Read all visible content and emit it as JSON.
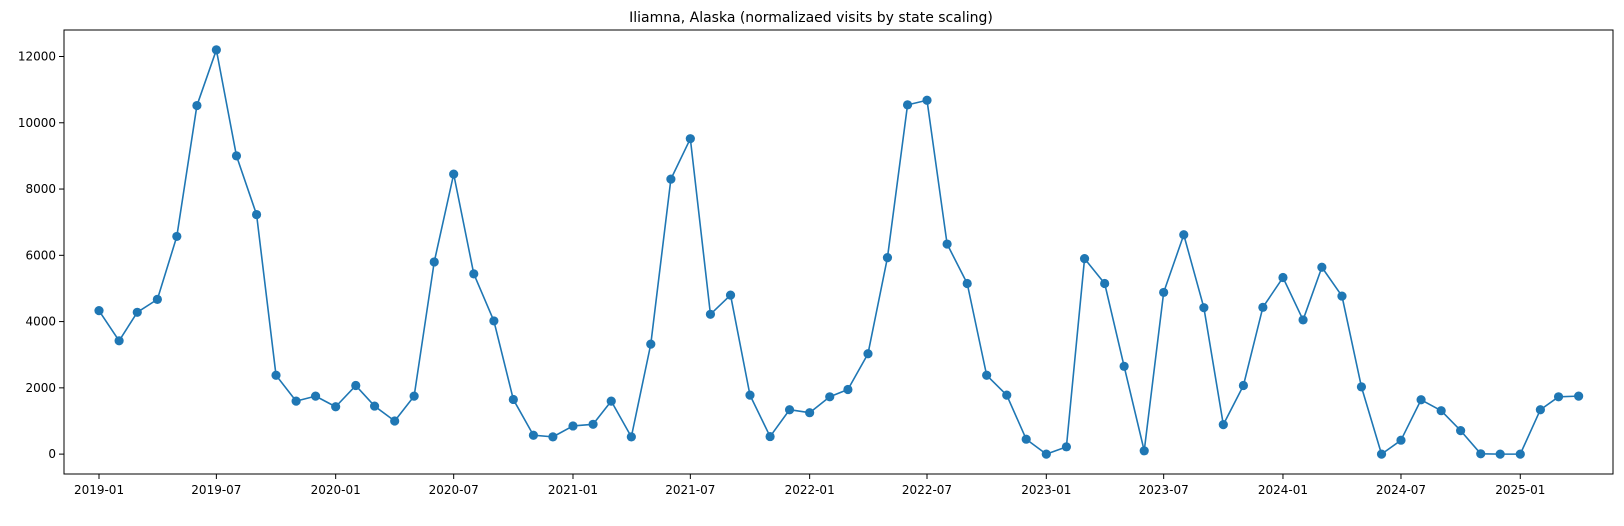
{
  "chart_data": {
    "type": "line",
    "title": "Iliamna, Alaska (normalizaed visits by state scaling)",
    "xlabel": "",
    "ylabel": "",
    "ylim": [
      -600,
      12800
    ],
    "xlim": [
      "2018-11-08",
      "2025-05-24"
    ],
    "grid": false,
    "color": "#1f77b4",
    "marker": "circle",
    "yticks": [
      0,
      2000,
      4000,
      6000,
      8000,
      10000,
      12000
    ],
    "xticks": [
      "2019-01",
      "2019-07",
      "2020-01",
      "2020-07",
      "2021-01",
      "2021-07",
      "2022-01",
      "2022-07",
      "2023-01",
      "2023-07",
      "2024-01",
      "2024-07",
      "2025-01"
    ],
    "series": [
      {
        "x": [
          "2019-01",
          "2019-02",
          "2019-03",
          "2019-04",
          "2019-05",
          "2019-06",
          "2019-07",
          "2019-08",
          "2019-09",
          "2019-10",
          "2019-11",
          "2019-12",
          "2020-01",
          "2020-02",
          "2020-03",
          "2020-04",
          "2020-05",
          "2020-06",
          "2020-07",
          "2020-08",
          "2020-09",
          "2020-10",
          "2020-11",
          "2020-12",
          "2021-01",
          "2021-02",
          "2021-03",
          "2021-04",
          "2021-05",
          "2021-06",
          "2021-07",
          "2021-08",
          "2021-09",
          "2021-10",
          "2021-11",
          "2021-12",
          "2022-01",
          "2022-02",
          "2022-03",
          "2022-04",
          "2022-05",
          "2022-06",
          "2022-07",
          "2022-08",
          "2022-09",
          "2022-10",
          "2022-11",
          "2022-12",
          "2023-01",
          "2023-02",
          "2023-03",
          "2023-04",
          "2023-05",
          "2023-06",
          "2023-07",
          "2023-08",
          "2023-09",
          "2023-10",
          "2023-11",
          "2023-12",
          "2024-01",
          "2024-02",
          "2024-03",
          "2024-04",
          "2024-05",
          "2024-06",
          "2024-07",
          "2024-08",
          "2024-09",
          "2024-10",
          "2024-11",
          "2024-12",
          "2025-01",
          "2025-02",
          "2025-03",
          "2025-04"
        ],
        "values": [
          4330,
          3420,
          4280,
          4670,
          6570,
          10520,
          12200,
          9000,
          7230,
          2380,
          1600,
          1750,
          1430,
          2070,
          1450,
          1000,
          1750,
          5800,
          8450,
          5440,
          4020,
          1650,
          570,
          520,
          850,
          900,
          1600,
          520,
          3320,
          8300,
          9520,
          4220,
          4800,
          1780,
          530,
          1340,
          1250,
          1730,
          1950,
          3030,
          5930,
          10540,
          10680,
          6340,
          5150,
          2380,
          1780,
          450,
          0,
          220,
          5900,
          5150,
          2650,
          100,
          4880,
          6620,
          4420,
          890,
          2070,
          4430,
          5330,
          4050,
          5640,
          4770,
          2030,
          0,
          420,
          1640,
          1310,
          710,
          10,
          0,
          0,
          1340,
          1730,
          1750
        ]
      }
    ]
  }
}
